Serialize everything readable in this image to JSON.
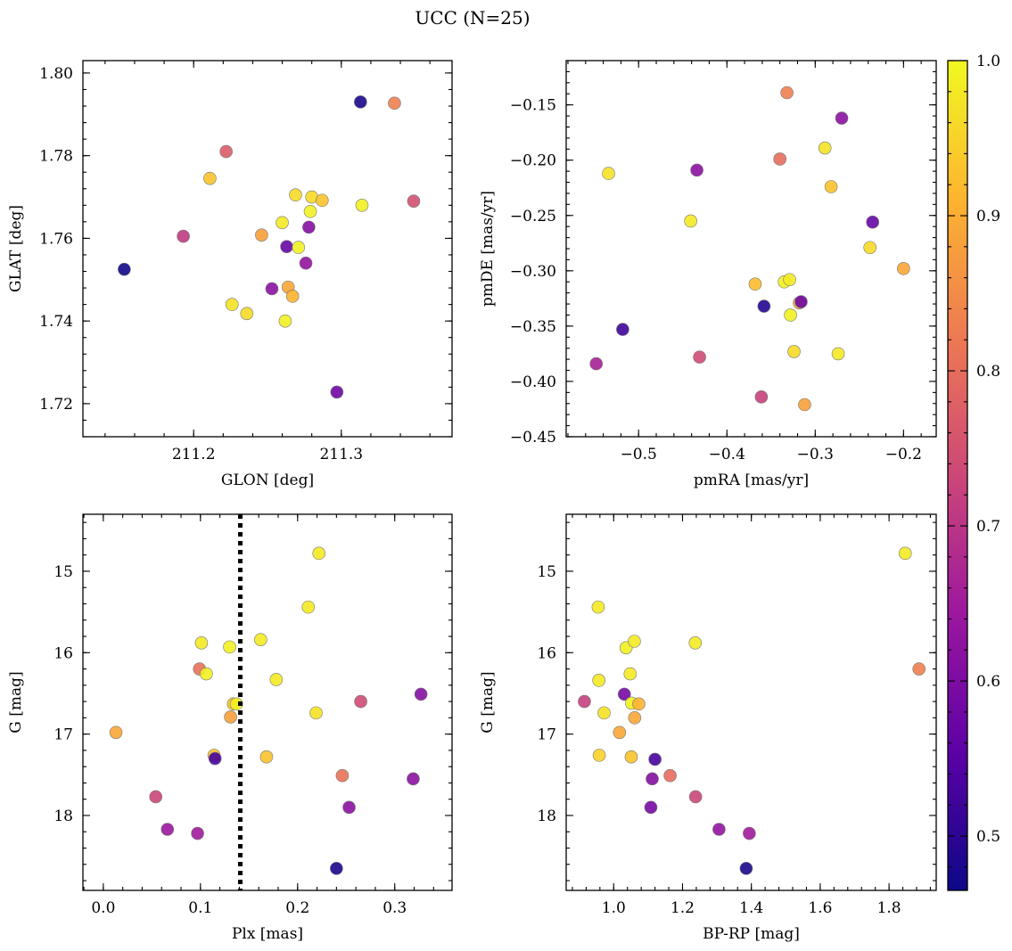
{
  "title": "UCC (N=25)",
  "colors": {
    "colormap": [
      "#0d0887",
      "#5c01a6",
      "#9c179e",
      "#cc4778",
      "#ed7953",
      "#fdb42f",
      "#f0f921"
    ],
    "point_edge": "#777777",
    "vline": "#000000"
  },
  "colorbar": {
    "range": [
      0.465,
      1.0
    ],
    "ticks": [
      0.5,
      0.6,
      0.7,
      0.8,
      0.9,
      1.0
    ],
    "tick_labels": [
      "0.5",
      "0.6",
      "0.7",
      "0.8",
      "0.9",
      "1.0"
    ]
  },
  "chart_data": [
    {
      "type": "scatter",
      "id": "glon-glat",
      "xlabel": "GLON [deg]",
      "ylabel": "GLAT [deg]",
      "xlim": [
        211.125,
        211.375
      ],
      "ylim": [
        1.712,
        1.803
      ],
      "y_inverted": false,
      "xticks": [
        211.2,
        211.3
      ],
      "xtick_labels": [
        "211.2",
        "211.3"
      ],
      "yticks": [
        1.72,
        1.74,
        1.76,
        1.78,
        1.8
      ],
      "ytick_labels": [
        "1.72",
        "1.74",
        "1.76",
        "1.78",
        "1.80"
      ],
      "points": [
        {
          "x": 211.153,
          "y": 1.7525,
          "c": 0.47
        },
        {
          "x": 211.193,
          "y": 1.7605,
          "c": 0.71
        },
        {
          "x": 211.211,
          "y": 1.7745,
          "c": 0.93
        },
        {
          "x": 211.222,
          "y": 1.781,
          "c": 0.77
        },
        {
          "x": 211.226,
          "y": 1.744,
          "c": 0.97
        },
        {
          "x": 211.236,
          "y": 1.7418,
          "c": 0.96
        },
        {
          "x": 211.246,
          "y": 1.7608,
          "c": 0.88
        },
        {
          "x": 211.253,
          "y": 1.7478,
          "c": 0.62
        },
        {
          "x": 211.26,
          "y": 1.7638,
          "c": 0.98
        },
        {
          "x": 211.262,
          "y": 1.74,
          "c": 0.99
        },
        {
          "x": 211.263,
          "y": 1.758,
          "c": 0.57
        },
        {
          "x": 211.264,
          "y": 1.7482,
          "c": 0.89
        },
        {
          "x": 211.267,
          "y": 1.746,
          "c": 0.91
        },
        {
          "x": 211.269,
          "y": 1.7705,
          "c": 0.96
        },
        {
          "x": 211.271,
          "y": 1.7578,
          "c": 0.99
        },
        {
          "x": 211.276,
          "y": 1.754,
          "c": 0.63
        },
        {
          "x": 211.278,
          "y": 1.7627,
          "c": 0.61
        },
        {
          "x": 211.279,
          "y": 1.7665,
          "c": 0.99
        },
        {
          "x": 211.28,
          "y": 1.77,
          "c": 0.96
        },
        {
          "x": 211.287,
          "y": 1.7692,
          "c": 0.93
        },
        {
          "x": 211.297,
          "y": 1.7228,
          "c": 0.58
        },
        {
          "x": 211.313,
          "y": 1.793,
          "c": 0.48
        },
        {
          "x": 211.314,
          "y": 1.768,
          "c": 0.99
        },
        {
          "x": 211.336,
          "y": 1.7927,
          "c": 0.83
        },
        {
          "x": 211.349,
          "y": 1.769,
          "c": 0.75
        }
      ]
    },
    {
      "type": "scatter",
      "id": "pmra-pmde",
      "xlabel": "pmRA [mas/yr]",
      "ylabel": "pmDE [mas/yr]",
      "xlim": [
        -0.582,
        -0.163
      ],
      "ylim": [
        -0.45,
        -0.11
      ],
      "y_inverted": false,
      "xticks": [
        -0.5,
        -0.4,
        -0.3,
        -0.2
      ],
      "xtick_labels": [
        "−0.5",
        "−0.4",
        "−0.3",
        "−0.2"
      ],
      "yticks": [
        -0.45,
        -0.4,
        -0.35,
        -0.3,
        -0.25,
        -0.2,
        -0.15
      ],
      "ytick_labels": [
        "−0.45",
        "−0.40",
        "−0.35",
        "−0.30",
        "−0.25",
        "−0.20",
        "−0.15"
      ],
      "points": [
        {
          "x": -0.548,
          "y": -0.384,
          "c": 0.66
        },
        {
          "x": -0.534,
          "y": -0.212,
          "c": 0.97
        },
        {
          "x": -0.518,
          "y": -0.353,
          "c": 0.52
        },
        {
          "x": -0.441,
          "y": -0.255,
          "c": 0.98
        },
        {
          "x": -0.434,
          "y": -0.209,
          "c": 0.62
        },
        {
          "x": -0.431,
          "y": -0.378,
          "c": 0.74
        },
        {
          "x": -0.368,
          "y": -0.312,
          "c": 0.92
        },
        {
          "x": -0.361,
          "y": -0.414,
          "c": 0.72
        },
        {
          "x": -0.358,
          "y": -0.332,
          "c": 0.49
        },
        {
          "x": -0.34,
          "y": -0.199,
          "c": 0.8
        },
        {
          "x": -0.335,
          "y": -0.31,
          "c": 0.99
        },
        {
          "x": -0.332,
          "y": -0.139,
          "c": 0.83
        },
        {
          "x": -0.329,
          "y": -0.308,
          "c": 0.98
        },
        {
          "x": -0.328,
          "y": -0.34,
          "c": 0.99
        },
        {
          "x": -0.324,
          "y": -0.373,
          "c": 0.96
        },
        {
          "x": -0.318,
          "y": -0.329,
          "c": 0.9
        },
        {
          "x": -0.316,
          "y": -0.328,
          "c": 0.58
        },
        {
          "x": -0.312,
          "y": -0.421,
          "c": 0.88
        },
        {
          "x": -0.289,
          "y": -0.189,
          "c": 0.97
        },
        {
          "x": -0.282,
          "y": -0.224,
          "c": 0.93
        },
        {
          "x": -0.274,
          "y": -0.375,
          "c": 0.98
        },
        {
          "x": -0.27,
          "y": -0.162,
          "c": 0.62
        },
        {
          "x": -0.238,
          "y": -0.279,
          "c": 0.96
        },
        {
          "x": -0.235,
          "y": -0.256,
          "c": 0.57
        },
        {
          "x": -0.2,
          "y": -0.298,
          "c": 0.89
        }
      ]
    },
    {
      "type": "scatter",
      "id": "plx-g",
      "xlabel": "Plx [mas]",
      "ylabel": "G [mag]",
      "xlim": [
        -0.021,
        0.359
      ],
      "ylim": [
        18.92,
        14.3
      ],
      "y_inverted": true,
      "vline": {
        "x": 0.141,
        "style": "dotted"
      },
      "xticks": [
        0.0,
        0.1,
        0.2,
        0.3
      ],
      "xtick_labels": [
        "0.0",
        "0.1",
        "0.2",
        "0.3"
      ],
      "yticks": [
        15,
        16,
        17,
        18
      ],
      "ytick_labels": [
        "15",
        "16",
        "17",
        "18"
      ],
      "points": [
        {
          "x": 0.013,
          "y": 16.98,
          "c": 0.89
        },
        {
          "x": 0.054,
          "y": 17.77,
          "c": 0.73
        },
        {
          "x": 0.066,
          "y": 18.17,
          "c": 0.64
        },
        {
          "x": 0.097,
          "y": 18.22,
          "c": 0.65
        },
        {
          "x": 0.099,
          "y": 16.2,
          "c": 0.81
        },
        {
          "x": 0.101,
          "y": 15.88,
          "c": 0.98
        },
        {
          "x": 0.106,
          "y": 16.26,
          "c": 0.99
        },
        {
          "x": 0.114,
          "y": 17.26,
          "c": 0.93
        },
        {
          "x": 0.115,
          "y": 17.3,
          "c": 0.53
        },
        {
          "x": 0.13,
          "y": 15.93,
          "c": 0.99
        },
        {
          "x": 0.131,
          "y": 16.79,
          "c": 0.88
        },
        {
          "x": 0.134,
          "y": 16.63,
          "c": 0.93
        },
        {
          "x": 0.137,
          "y": 16.63,
          "c": 0.99
        },
        {
          "x": 0.162,
          "y": 15.84,
          "c": 0.98
        },
        {
          "x": 0.168,
          "y": 17.28,
          "c": 0.93
        },
        {
          "x": 0.178,
          "y": 16.33,
          "c": 0.98
        },
        {
          "x": 0.211,
          "y": 15.44,
          "c": 0.98
        },
        {
          "x": 0.219,
          "y": 16.74,
          "c": 0.97
        },
        {
          "x": 0.222,
          "y": 14.78,
          "c": 0.98
        },
        {
          "x": 0.24,
          "y": 18.65,
          "c": 0.48
        },
        {
          "x": 0.246,
          "y": 17.51,
          "c": 0.81
        },
        {
          "x": 0.253,
          "y": 17.9,
          "c": 0.62
        },
        {
          "x": 0.265,
          "y": 16.6,
          "c": 0.74
        },
        {
          "x": 0.319,
          "y": 17.55,
          "c": 0.62
        },
        {
          "x": 0.327,
          "y": 16.51,
          "c": 0.61
        }
      ]
    },
    {
      "type": "scatter",
      "id": "bprp-g",
      "xlabel": "BP-RP [mag]",
      "ylabel": "G [mag]",
      "xlim": [
        0.862,
        1.937
      ],
      "ylim": [
        18.92,
        14.3
      ],
      "y_inverted": true,
      "xticks": [
        1.0,
        1.2,
        1.4,
        1.6,
        1.8
      ],
      "xtick_labels": [
        "1.0",
        "1.2",
        "1.4",
        "1.6",
        "1.8"
      ],
      "yticks": [
        15,
        16,
        17,
        18
      ],
      "ytick_labels": [
        "15",
        "16",
        "17",
        "18"
      ],
      "points": [
        {
          "x": 0.915,
          "y": 16.6,
          "c": 0.72
        },
        {
          "x": 0.955,
          "y": 15.44,
          "c": 0.98
        },
        {
          "x": 0.957,
          "y": 16.34,
          "c": 0.98
        },
        {
          "x": 0.958,
          "y": 17.26,
          "c": 0.95
        },
        {
          "x": 0.972,
          "y": 16.74,
          "c": 0.97
        },
        {
          "x": 1.017,
          "y": 16.98,
          "c": 0.89
        },
        {
          "x": 1.031,
          "y": 16.51,
          "c": 0.59
        },
        {
          "x": 1.036,
          "y": 15.94,
          "c": 0.99
        },
        {
          "x": 1.048,
          "y": 16.26,
          "c": 0.98
        },
        {
          "x": 1.051,
          "y": 17.28,
          "c": 0.93
        },
        {
          "x": 1.052,
          "y": 16.62,
          "c": 0.99
        },
        {
          "x": 1.06,
          "y": 15.86,
          "c": 0.98
        },
        {
          "x": 1.061,
          "y": 16.8,
          "c": 0.89
        },
        {
          "x": 1.073,
          "y": 16.63,
          "c": 0.91
        },
        {
          "x": 1.108,
          "y": 17.9,
          "c": 0.59
        },
        {
          "x": 1.112,
          "y": 17.55,
          "c": 0.61
        },
        {
          "x": 1.12,
          "y": 17.31,
          "c": 0.53
        },
        {
          "x": 1.164,
          "y": 17.51,
          "c": 0.8
        },
        {
          "x": 1.237,
          "y": 15.88,
          "c": 0.98
        },
        {
          "x": 1.238,
          "y": 17.77,
          "c": 0.73
        },
        {
          "x": 1.306,
          "y": 18.17,
          "c": 0.63
        },
        {
          "x": 1.385,
          "y": 18.65,
          "c": 0.48
        },
        {
          "x": 1.394,
          "y": 18.22,
          "c": 0.65
        },
        {
          "x": 1.847,
          "y": 14.78,
          "c": 0.98
        },
        {
          "x": 1.887,
          "y": 16.2,
          "c": 0.83
        }
      ]
    }
  ]
}
